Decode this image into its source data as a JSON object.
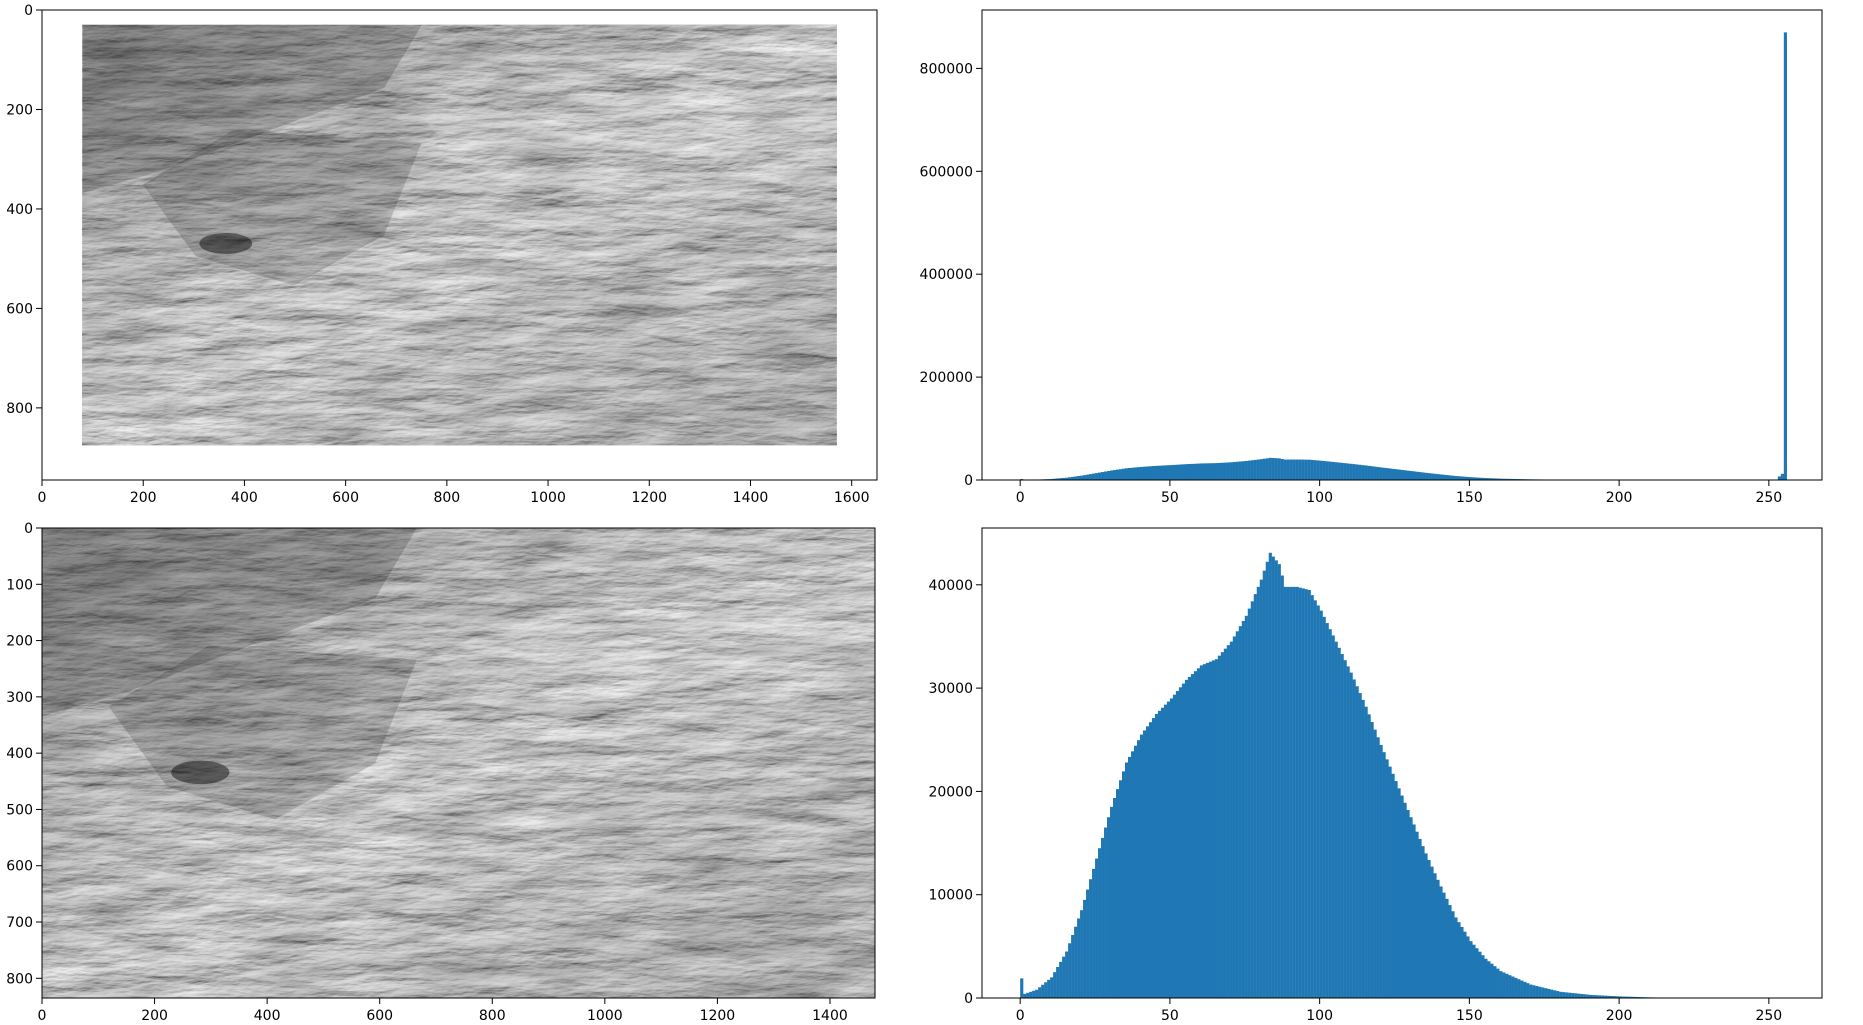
{
  "colors": {
    "bar": "#1f77b4",
    "axes": "#000000",
    "background": "#ffffff"
  },
  "chart_data": [
    {
      "type": "image",
      "subplot": "top-left",
      "content": "grayscale terrain image (canyon wall) on white canvas",
      "xlim": [
        0,
        1650
      ],
      "ylim": [
        945,
        0
      ],
      "image_extent": {
        "x": [
          80,
          1570
        ],
        "y": [
          30,
          875
        ]
      },
      "xticks": [
        0,
        200,
        400,
        600,
        800,
        1000,
        1200,
        1400,
        1600
      ],
      "yticks": [
        0,
        200,
        400,
        600,
        800
      ],
      "title": "",
      "xlabel": "",
      "ylabel": ""
    },
    {
      "type": "bar",
      "subplot": "top-right",
      "description": "histogram of pixel intensities (with white background)",
      "xlim": [
        -12.75,
        267.75
      ],
      "ylim": [
        0,
        913500
      ],
      "xticks": [
        0,
        50,
        100,
        150,
        200,
        250
      ],
      "yticks": [
        0,
        200000,
        400000,
        600000,
        800000
      ],
      "ymax_bin_value": 870000,
      "title": "",
      "xlabel": "",
      "ylabel": ""
    },
    {
      "type": "image",
      "subplot": "bottom-left",
      "content": "cropped grayscale terrain image (canyon wall)",
      "xlim": [
        0,
        1480
      ],
      "ylim": [
        835,
        0
      ],
      "xticks": [
        0,
        200,
        400,
        600,
        800,
        1000,
        1200,
        1400
      ],
      "yticks": [
        0,
        100,
        200,
        300,
        400,
        500,
        600,
        700,
        800
      ],
      "title": "",
      "xlabel": "",
      "ylabel": ""
    },
    {
      "type": "bar",
      "subplot": "bottom-right",
      "description": "histogram of pixel intensities (cropped image)",
      "xlim": [
        -12.75,
        267.75
      ],
      "ylim": [
        0,
        45500
      ],
      "xticks": [
        0,
        50,
        100,
        150,
        200,
        250
      ],
      "yticks": [
        0,
        10000,
        20000,
        30000,
        40000
      ],
      "control_points": [
        [
          0,
          1900
        ],
        [
          1,
          400
        ],
        [
          5,
          800
        ],
        [
          10,
          2000
        ],
        [
          15,
          4500
        ],
        [
          20,
          8500
        ],
        [
          25,
          13500
        ],
        [
          30,
          18500
        ],
        [
          35,
          22800
        ],
        [
          40,
          25500
        ],
        [
          45,
          27500
        ],
        [
          50,
          29000
        ],
        [
          55,
          30800
        ],
        [
          60,
          32200
        ],
        [
          65,
          32800
        ],
        [
          70,
          34500
        ],
        [
          75,
          37000
        ],
        [
          80,
          40500
        ],
        [
          83,
          43100
        ],
        [
          86,
          42000
        ],
        [
          88,
          39800
        ],
        [
          92,
          39800
        ],
        [
          96,
          39500
        ],
        [
          100,
          37500
        ],
        [
          105,
          34500
        ],
        [
          110,
          31500
        ],
        [
          115,
          28200
        ],
        [
          120,
          24500
        ],
        [
          125,
          21000
        ],
        [
          130,
          17500
        ],
        [
          135,
          14000
        ],
        [
          140,
          10800
        ],
        [
          145,
          7800
        ],
        [
          150,
          5500
        ],
        [
          155,
          3800
        ],
        [
          160,
          2600
        ],
        [
          170,
          1300
        ],
        [
          180,
          600
        ],
        [
          190,
          300
        ],
        [
          200,
          150
        ],
        [
          210,
          60
        ],
        [
          220,
          20
        ],
        [
          230,
          5
        ],
        [
          255,
          0
        ]
      ],
      "title": "",
      "xlabel": "",
      "ylabel": ""
    }
  ]
}
